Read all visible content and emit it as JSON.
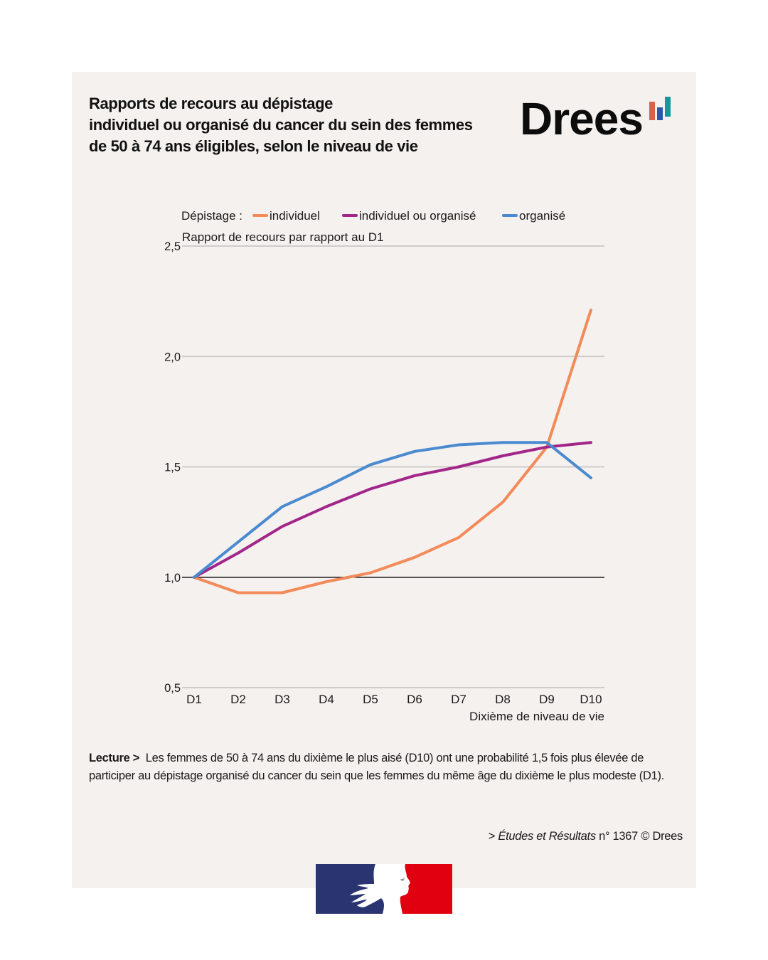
{
  "title_lines": [
    "Rapports de recours au dépistage",
    "individuel ou organisé du cancer du sein des femmes",
    "de 50 à 74 ans éligibles, selon le niveau de vie"
  ],
  "logo": {
    "text": "Drees",
    "bar_colors": [
      "#d9614b",
      "#2b55a8",
      "#14999b"
    ]
  },
  "legend": {
    "prefix": "Dépistage :",
    "items": [
      {
        "label": "individuel",
        "color": "#f28a5a"
      },
      {
        "label": "individuel ou organisé",
        "color": "#a2268a"
      },
      {
        "label": "organisé",
        "color": "#4a8ad0"
      }
    ]
  },
  "chart_data": {
    "type": "line",
    "title": "Rapports de recours au dépistage individuel ou organisé du cancer du sein des femmes de 50 à 74 ans éligibles, selon le niveau de vie",
    "ylabel": "Rapport de recours par rapport au D1",
    "xlabel": "Dixième de niveau de vie",
    "categories": [
      "D1",
      "D2",
      "D3",
      "D4",
      "D5",
      "D6",
      "D7",
      "D8",
      "D9",
      "D10"
    ],
    "ylim": [
      0.5,
      2.5
    ],
    "yticks": [
      0.5,
      1.0,
      1.5,
      2.0,
      2.5
    ],
    "ytick_labels": [
      "0,5",
      "1,0",
      "1,5",
      "2,0",
      "2,5"
    ],
    "reference_line": 1.0,
    "grid": true,
    "legend_position": "top",
    "series": [
      {
        "name": "individuel",
        "color": "#f28a5a",
        "values": [
          1.0,
          0.93,
          0.93,
          0.98,
          1.02,
          1.09,
          1.18,
          1.34,
          1.59,
          2.21
        ]
      },
      {
        "name": "individuel ou organisé",
        "color": "#a2268a",
        "values": [
          1.0,
          1.11,
          1.23,
          1.32,
          1.4,
          1.46,
          1.5,
          1.55,
          1.59,
          1.61
        ]
      },
      {
        "name": "organisé",
        "color": "#4a8ad0",
        "values": [
          1.0,
          1.16,
          1.32,
          1.41,
          1.51,
          1.57,
          1.6,
          1.61,
          1.61,
          1.45
        ]
      }
    ]
  },
  "lecture": {
    "label": "Lecture >",
    "text": "Les femmes de 50 à 74 ans du dixième le plus aisé (D10) ont une probabilité 1,5 fois plus élevée de participer au dépistage organisé du cancer du sein que les femmes du même âge du dixième le plus modeste (D1)."
  },
  "source": {
    "prefix": ">",
    "publication": "Études et Résultats",
    "suffix": "n° 1367 © Drees"
  },
  "marianne_colors": {
    "blue": "#2a3470",
    "red": "#e1000f"
  }
}
